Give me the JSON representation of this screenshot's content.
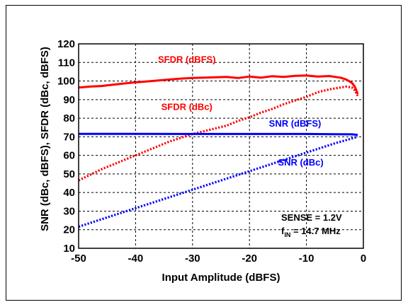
{
  "chart_data": {
    "type": "line",
    "xlabel": "Input Amplitude (dBFS)",
    "ylabel": "SNR (dBc, dBFS), SFDR (dBc, dBFS)",
    "xlim": [
      -50,
      0
    ],
    "ylim": [
      10,
      120
    ],
    "xticks": [
      -50,
      -40,
      -30,
      -20,
      -10,
      0
    ],
    "yticks": [
      10,
      20,
      30,
      40,
      50,
      60,
      70,
      80,
      90,
      100,
      110,
      120
    ],
    "grid": true,
    "series": [
      {
        "name": "SFDR (dBFS)",
        "color": "#ff0000",
        "style": "solid",
        "x": [
          -50,
          -48,
          -46,
          -44,
          -42,
          -40,
          -38,
          -36,
          -34,
          -32,
          -30,
          -28,
          -26,
          -24,
          -22,
          -20,
          -18,
          -16,
          -14,
          -12,
          -10,
          -8,
          -6,
          -4,
          -3,
          -2,
          -1.5,
          -1
        ],
        "y": [
          96.5,
          97,
          97.3,
          98,
          98.7,
          99.3,
          99.8,
          100.3,
          100.8,
          101.3,
          101.6,
          101.8,
          102,
          102.2,
          101.6,
          102.4,
          101.8,
          102.6,
          102.2,
          102.8,
          103,
          102.4,
          102.7,
          101.8,
          100.8,
          99,
          97,
          93
        ]
      },
      {
        "name": "SFDR (dBc)",
        "color": "#ff0000",
        "style": "dotted",
        "x": [
          -50,
          -48,
          -46,
          -44,
          -42,
          -40,
          -38,
          -36,
          -34,
          -32,
          -30,
          -28,
          -26,
          -24,
          -22,
          -20,
          -18,
          -16,
          -14,
          -12,
          -10,
          -8,
          -6,
          -4,
          -3,
          -2,
          -1.5,
          -1
        ],
        "y": [
          46.5,
          49.5,
          52.5,
          55,
          57.5,
          60,
          62.5,
          65,
          67.5,
          69.5,
          71.5,
          73,
          74.5,
          76,
          78.5,
          80.5,
          83,
          85,
          87.5,
          89.5,
          91.5,
          94,
          95.5,
          96.5,
          97,
          96.5,
          95,
          92
        ]
      },
      {
        "name": "SNR (dBFS)",
        "color": "#0000ff",
        "style": "solid",
        "x": [
          -50,
          -40,
          -30,
          -20,
          -10,
          -5,
          -2,
          -1
        ],
        "y": [
          71.6,
          71.6,
          71.5,
          71.5,
          71.5,
          71.4,
          71.3,
          71
        ]
      },
      {
        "name": "SNR (dBc)",
        "color": "#0000ff",
        "style": "dotted",
        "x": [
          -50,
          -40,
          -30,
          -20,
          -10,
          -5,
          -1
        ],
        "y": [
          21.6,
          31.6,
          41.5,
          51.5,
          61.5,
          66.5,
          70
        ]
      }
    ],
    "annotations": [
      {
        "text": "SFDR (dBFS)",
        "color": "#ff0000",
        "x": -31,
        "y": 110
      },
      {
        "text": "SFDR (dBc)",
        "color": "#ff0000",
        "x": -31,
        "y": 84.5
      },
      {
        "text": "SNR (dBFS)",
        "color": "#0000ff",
        "x": -12,
        "y": 75.5
      },
      {
        "text": "SNR (dBc)",
        "color": "#0000ff",
        "x": -11,
        "y": 54.5
      }
    ],
    "notes": {
      "sense": "SENSE = 1.2V",
      "fin_prefix": "f",
      "fin_sub": "IN",
      "fin_value": " = 14.7 MHz"
    }
  }
}
